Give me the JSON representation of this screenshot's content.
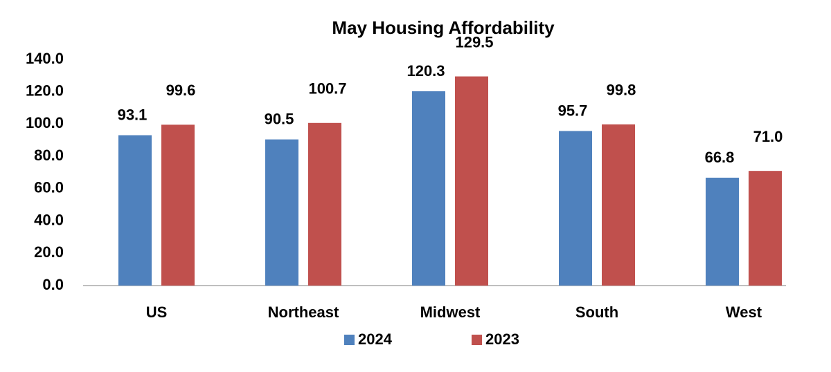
{
  "chart_data": {
    "type": "bar",
    "title": "May Housing Affordability",
    "categories": [
      "US",
      "Northeast",
      "Midwest",
      "South",
      "West"
    ],
    "series": [
      {
        "name": "2024",
        "color": "#4f81bd",
        "values": [
          93.1,
          90.5,
          120.3,
          95.7,
          66.8
        ],
        "value_labels": [
          "93.1",
          "90.5",
          "120.3",
          "95.7",
          "66.8"
        ]
      },
      {
        "name": "2023",
        "color": "#c0504d",
        "values": [
          99.6,
          100.7,
          129.5,
          99.8,
          71.0
        ],
        "value_labels": [
          "99.6",
          "100.7",
          "129.5",
          "99.8",
          "71.0"
        ]
      }
    ],
    "ylim": [
      0,
      140
    ],
    "yticks": [
      {
        "value": 0,
        "label": "0.0"
      },
      {
        "value": 20,
        "label": "20.0"
      },
      {
        "value": 40,
        "label": "40.0"
      },
      {
        "value": 60,
        "label": "60.0"
      },
      {
        "value": 80,
        "label": "80.0"
      },
      {
        "value": 100,
        "label": "100.0"
      },
      {
        "value": 120,
        "label": "120.0"
      },
      {
        "value": 140,
        "label": "140.0"
      }
    ],
    "grid": false,
    "legend": "bottom"
  }
}
